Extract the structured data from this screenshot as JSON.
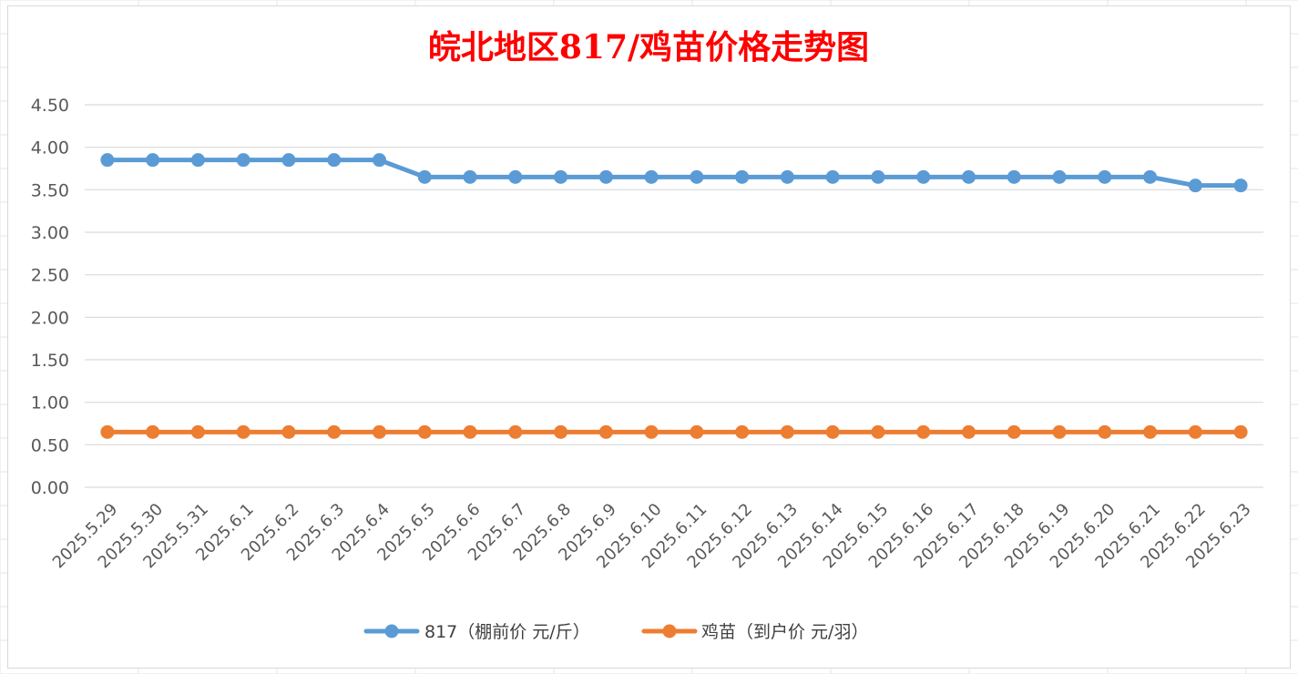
{
  "chart_data": {
    "type": "line",
    "title": "皖北地区817/鸡苗价格走势图",
    "categories": [
      "2025.5.29",
      "2025.5.30",
      "2025.5.31",
      "2025.6.1",
      "2025.6.2",
      "2025.6.3",
      "2025.6.4",
      "2025.6.5",
      "2025.6.6",
      "2025.6.7",
      "2025.6.8",
      "2025.6.9",
      "2025.6.10",
      "2025.6.11",
      "2025.6.12",
      "2025.6.13",
      "2025.6.14",
      "2025.6.15",
      "2025.6.16",
      "2025.6.17",
      "2025.6.18",
      "2025.6.19",
      "2025.6.20",
      "2025.6.21",
      "2025.6.22",
      "2025.6.23"
    ],
    "series": [
      {
        "name": "817（棚前价 元/斤）",
        "color": "#5b9bd5",
        "values": [
          3.85,
          3.85,
          3.85,
          3.85,
          3.85,
          3.85,
          3.85,
          3.65,
          3.65,
          3.65,
          3.65,
          3.65,
          3.65,
          3.65,
          3.65,
          3.65,
          3.65,
          3.65,
          3.65,
          3.65,
          3.65,
          3.65,
          3.65,
          3.65,
          3.55,
          3.55
        ]
      },
      {
        "name": "鸡苗（到户价 元/羽）",
        "color": "#ed7d31",
        "values": [
          0.65,
          0.65,
          0.65,
          0.65,
          0.65,
          0.65,
          0.65,
          0.65,
          0.65,
          0.65,
          0.65,
          0.65,
          0.65,
          0.65,
          0.65,
          0.65,
          0.65,
          0.65,
          0.65,
          0.65,
          0.65,
          0.65,
          0.65,
          0.65,
          0.65,
          0.65
        ]
      }
    ],
    "yticks": [
      "0.00",
      "0.50",
      "1.00",
      "1.50",
      "2.00",
      "2.50",
      "3.00",
      "3.50",
      "4.00",
      "4.50"
    ],
    "ylim": [
      0,
      4.5
    ],
    "grid": true,
    "legend_position": "bottom"
  }
}
